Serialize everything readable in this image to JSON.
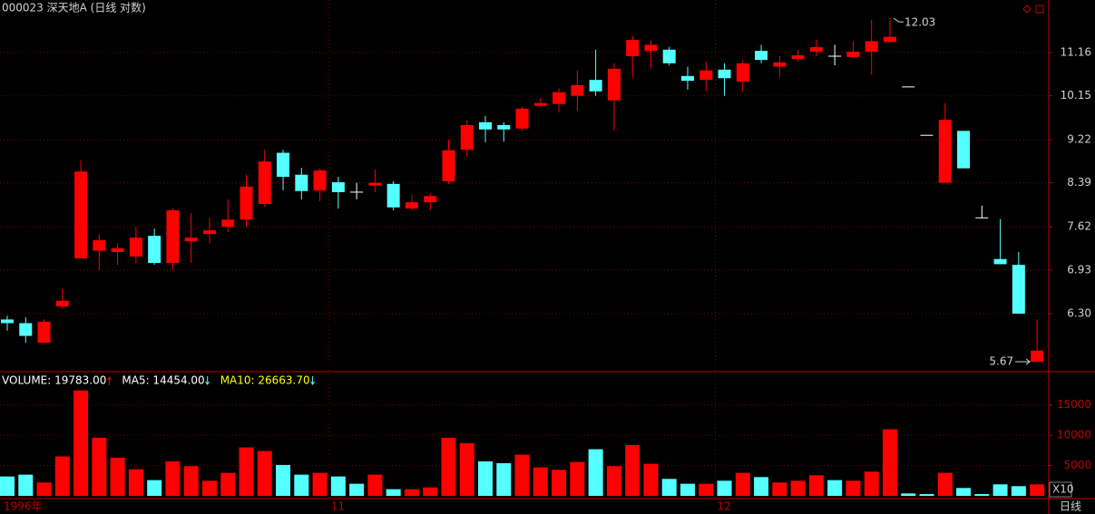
{
  "chart_data": [
    {
      "type": "candlestick",
      "title": "000023 深天地A (日线 对数)",
      "log_scale": true,
      "grid": true,
      "up_color": "#ff0000",
      "down_color": "#54ffff",
      "flat_color": "#ffffff",
      "categories": [
        "1996年",
        null,
        null,
        null,
        null,
        null,
        null,
        null,
        null,
        null,
        null,
        null,
        null,
        null,
        null,
        null,
        null,
        null,
        "11",
        null,
        null,
        null,
        null,
        null,
        null,
        null,
        null,
        null,
        null,
        null,
        null,
        null,
        null,
        null,
        null,
        null,
        null,
        null,
        null,
        "12",
        null,
        null,
        null,
        null,
        null,
        null,
        null,
        null,
        null,
        null,
        null,
        null,
        null,
        null,
        null,
        null,
        null
      ],
      "open": [
        6.22,
        6.17,
        5.91,
        6.4,
        7.11,
        7.23,
        7.21,
        7.14,
        7.47,
        7.04,
        7.38,
        7.5,
        7.62,
        7.74,
        8.01,
        8.96,
        8.54,
        8.25,
        8.4,
        8.22,
        8.34,
        8.37,
        7.93,
        8.04,
        8.42,
        9.02,
        9.58,
        9.52,
        9.45,
        9.93,
        9.97,
        10.15,
        10.51,
        10.05,
        11.07,
        11.2,
        11.23,
        10.6,
        10.51,
        10.75,
        10.47,
        11.2,
        10.82,
        11.0,
        11.18,
        11.07,
        11.05,
        11.18,
        11.42,
        10.35,
        9.31,
        8.39,
        9.4,
        7.77,
        7.1,
        7.01,
        5.67
      ],
      "high": [
        6.27,
        6.25,
        6.22,
        6.65,
        8.81,
        7.5,
        7.35,
        7.62,
        7.59,
        7.93,
        7.85,
        7.77,
        8.09,
        8.54,
        9.02,
        9.02,
        8.67,
        8.66,
        8.5,
        8.39,
        8.64,
        8.42,
        8.17,
        8.2,
        9.22,
        9.63,
        9.71,
        9.58,
        9.91,
        10.1,
        10.31,
        10.73,
        11.23,
        10.9,
        11.57,
        11.46,
        11.3,
        10.82,
        10.94,
        10.9,
        10.98,
        11.35,
        11.07,
        11.23,
        11.48,
        11.35,
        11.44,
        11.99,
        12.03,
        10.35,
        9.31,
        9.99,
        9.4,
        7.98,
        7.75,
        7.21,
        6.22
      ],
      "low": [
        6.07,
        5.91,
        5.91,
        6.37,
        7.11,
        6.93,
        7.01,
        7.04,
        7.01,
        6.93,
        7.04,
        7.35,
        7.53,
        7.62,
        7.96,
        8.25,
        8.09,
        8.06,
        7.93,
        8.09,
        8.22,
        7.9,
        7.9,
        7.9,
        8.37,
        8.9,
        9.17,
        9.18,
        9.4,
        9.91,
        9.79,
        9.83,
        10.15,
        9.4,
        10.57,
        10.78,
        10.85,
        10.29,
        10.25,
        10.15,
        10.25,
        10.9,
        10.57,
        10.94,
        11.07,
        10.85,
        11.03,
        10.63,
        11.4,
        10.35,
        9.31,
        8.39,
        8.66,
        7.77,
        7.02,
        6.3,
        5.67
      ],
      "close": [
        6.17,
        6.0,
        6.19,
        6.48,
        8.6,
        7.4,
        7.27,
        7.44,
        7.04,
        7.9,
        7.44,
        7.56,
        7.74,
        8.32,
        8.79,
        8.5,
        8.24,
        8.62,
        8.22,
        8.22,
        8.39,
        7.95,
        8.04,
        8.15,
        9.01,
        9.52,
        9.43,
        9.43,
        9.87,
        9.99,
        10.23,
        10.39,
        10.25,
        10.77,
        11.47,
        11.35,
        10.9,
        10.49,
        10.73,
        10.55,
        10.9,
        10.98,
        10.92,
        11.09,
        11.29,
        11.07,
        11.18,
        11.44,
        11.55,
        10.35,
        9.31,
        9.63,
        8.66,
        7.77,
        7.02,
        6.3,
        5.81
      ],
      "ylim": [
        5.57,
        12.52
      ],
      "yticks": [
        {
          "value": 6.3,
          "label": "6.30"
        },
        6.93,
        7.62,
        8.39,
        9.22,
        10.15,
        11.16
      ],
      "annotations": [
        {
          "text": "12.03",
          "x": 48,
          "y": 12.03
        },
        {
          "text": "5.67",
          "x": 56,
          "y": 5.67
        }
      ]
    },
    {
      "type": "bar",
      "unit_label": "X10",
      "legend": [
        {
          "text": "VOLUME: 19783.00",
          "color": "#ffffff"
        },
        {
          "text": "MA5: 14454.00",
          "color": "#ffffff"
        },
        {
          "text": "MA10: 26663.70",
          "color": "#ffff00"
        }
      ],
      "values": [
        3200,
        3500,
        2200,
        6500,
        17400,
        9600,
        6300,
        4400,
        2600,
        5700,
        4900,
        2500,
        3800,
        8000,
        7400,
        5100,
        3500,
        3800,
        3200,
        2000,
        3500,
        1100,
        1100,
        1400,
        9600,
        8700,
        5700,
        5400,
        6800,
        4700,
        4300,
        5600,
        7700,
        4900,
        8400,
        5300,
        2800,
        2000,
        2000,
        2500,
        3800,
        3100,
        2200,
        2500,
        3400,
        2600,
        2500,
        4000,
        11000,
        400,
        300,
        3800,
        1300,
        300,
        1900,
        1600,
        1900
      ],
      "ylim": [
        0,
        19000
      ],
      "yticks": [
        5000,
        10000,
        15000
      ],
      "grid": true
    }
  ],
  "ui": {
    "period": "日线"
  }
}
